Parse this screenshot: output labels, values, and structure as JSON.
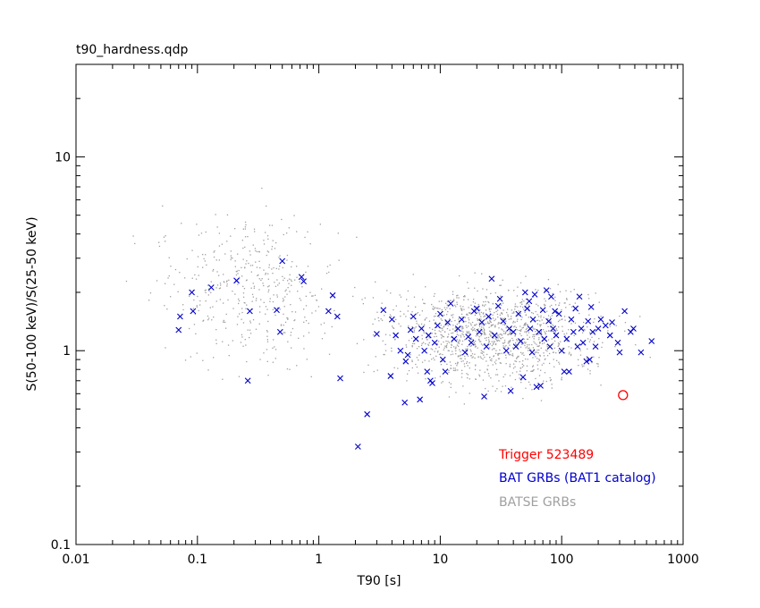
{
  "chart_data": {
    "type": "scatter",
    "file_label": "t90_hardness.qdp",
    "xlabel": "T90 [s]",
    "ylabel": "S(50-100 keV)/S(25-50 keV)",
    "x_scale": "log",
    "y_scale": "log",
    "xlim": [
      0.01,
      1000
    ],
    "ylim": [
      0.1,
      30
    ],
    "x_ticks": [
      0.01,
      0.1,
      1,
      10,
      100,
      1000
    ],
    "x_tick_labels": [
      "0.01",
      "0.1",
      "1",
      "10",
      "100",
      "1000"
    ],
    "y_ticks": [
      0.1,
      1,
      10
    ],
    "y_tick_labels": [
      "0.1",
      "1",
      "10"
    ],
    "grid": false,
    "colors": {
      "trigger": "#ff0000",
      "bat": "#0000cc",
      "batse": "#a0a0a0",
      "axes": "#000000"
    },
    "legend": {
      "placement": "lower-right",
      "entries": [
        "Trigger 523489",
        "BAT GRBs (BAT1 catalog)",
        "BATSE GRBs"
      ]
    },
    "series": [
      {
        "name": "Trigger 523489",
        "marker": "open-circle",
        "color": "#ff0000",
        "points": [
          [
            320,
            0.59
          ]
        ]
      },
      {
        "name": "BAT GRBs (BAT1 catalog)",
        "marker": "x",
        "color": "#0000cc",
        "points": [
          [
            0.07,
            1.28
          ],
          [
            0.072,
            1.5
          ],
          [
            0.09,
            2.0
          ],
          [
            0.092,
            1.6
          ],
          [
            0.13,
            2.12
          ],
          [
            0.21,
            2.3
          ],
          [
            0.26,
            0.7
          ],
          [
            0.27,
            1.6
          ],
          [
            0.45,
            1.62
          ],
          [
            0.48,
            1.25
          ],
          [
            0.5,
            2.9
          ],
          [
            0.72,
            2.4
          ],
          [
            0.75,
            2.28
          ],
          [
            1.2,
            1.6
          ],
          [
            1.3,
            1.93
          ],
          [
            1.42,
            1.5
          ],
          [
            1.5,
            0.72
          ],
          [
            2.1,
            0.32
          ],
          [
            2.5,
            0.47
          ],
          [
            3.0,
            1.22
          ],
          [
            3.4,
            1.62
          ],
          [
            3.9,
            0.74
          ],
          [
            4.0,
            1.45
          ],
          [
            4.3,
            1.2
          ],
          [
            4.7,
            1.0
          ],
          [
            5.1,
            0.54
          ],
          [
            5.2,
            0.88
          ],
          [
            5.4,
            0.95
          ],
          [
            5.7,
            1.28
          ],
          [
            6.0,
            1.5
          ],
          [
            6.3,
            1.15
          ],
          [
            6.8,
            0.56
          ],
          [
            7.0,
            1.3
          ],
          [
            7.4,
            1.0
          ],
          [
            7.8,
            0.78
          ],
          [
            8.0,
            1.2
          ],
          [
            8.3,
            0.7
          ],
          [
            8.6,
            0.68
          ],
          [
            9.0,
            1.1
          ],
          [
            9.5,
            1.35
          ],
          [
            10.0,
            1.55
          ],
          [
            10.5,
            0.9
          ],
          [
            11.0,
            0.78
          ],
          [
            11.5,
            1.4
          ],
          [
            12.2,
            1.75
          ],
          [
            13.0,
            1.15
          ],
          [
            14.0,
            1.3
          ],
          [
            15.0,
            1.45
          ],
          [
            16.0,
            0.98
          ],
          [
            17.0,
            1.18
          ],
          [
            18.0,
            1.1
          ],
          [
            19.0,
            1.6
          ],
          [
            20.0,
            1.65
          ],
          [
            21.0,
            1.25
          ],
          [
            22.0,
            1.4
          ],
          [
            23.0,
            0.58
          ],
          [
            24.0,
            1.05
          ],
          [
            25.0,
            1.5
          ],
          [
            26.5,
            2.35
          ],
          [
            28.0,
            1.2
          ],
          [
            30.0,
            1.7
          ],
          [
            31.0,
            1.85
          ],
          [
            33.0,
            1.42
          ],
          [
            35.0,
            1.0
          ],
          [
            37.0,
            1.3
          ],
          [
            38.0,
            0.62
          ],
          [
            40.0,
            1.25
          ],
          [
            42.0,
            1.05
          ],
          [
            44.0,
            1.55
          ],
          [
            46.0,
            1.12
          ],
          [
            48.0,
            0.73
          ],
          [
            50.0,
            2.0
          ],
          [
            52.0,
            1.65
          ],
          [
            54.0,
            1.8
          ],
          [
            55.0,
            1.3
          ],
          [
            57.0,
            0.98
          ],
          [
            58.0,
            1.45
          ],
          [
            60.0,
            1.95
          ],
          [
            62.0,
            0.65
          ],
          [
            65.0,
            1.25
          ],
          [
            67.0,
            0.66
          ],
          [
            70.0,
            1.62
          ],
          [
            72.0,
            1.15
          ],
          [
            75.0,
            2.05
          ],
          [
            78.0,
            1.42
          ],
          [
            80.0,
            1.05
          ],
          [
            82.0,
            1.9
          ],
          [
            85.0,
            1.3
          ],
          [
            88.0,
            1.6
          ],
          [
            90.0,
            1.2
          ],
          [
            95.0,
            1.55
          ],
          [
            100.0,
            1.0
          ],
          [
            105.0,
            0.78
          ],
          [
            110.0,
            1.15
          ],
          [
            115.0,
            0.78
          ],
          [
            120.0,
            1.45
          ],
          [
            125.0,
            1.25
          ],
          [
            130.0,
            1.65
          ],
          [
            135.0,
            1.05
          ],
          [
            140.0,
            1.9
          ],
          [
            145.0,
            1.3
          ],
          [
            150.0,
            1.1
          ],
          [
            160.0,
            0.88
          ],
          [
            165.0,
            1.42
          ],
          [
            170.0,
            0.9
          ],
          [
            175.0,
            1.68
          ],
          [
            180.0,
            1.25
          ],
          [
            190.0,
            1.05
          ],
          [
            200.0,
            1.3
          ],
          [
            210.0,
            1.45
          ],
          [
            230.0,
            1.35
          ],
          [
            250.0,
            1.2
          ],
          [
            260.0,
            1.4
          ],
          [
            290.0,
            1.1
          ],
          [
            300.0,
            0.98
          ],
          [
            330.0,
            1.6
          ],
          [
            370.0,
            1.25
          ],
          [
            390.0,
            1.3
          ],
          [
            450.0,
            0.98
          ],
          [
            550.0,
            1.12
          ]
        ]
      },
      {
        "name": "BATSE GRBs",
        "marker": "dot",
        "color": "#a0a0a0",
        "generated_count": 1700
      }
    ]
  }
}
